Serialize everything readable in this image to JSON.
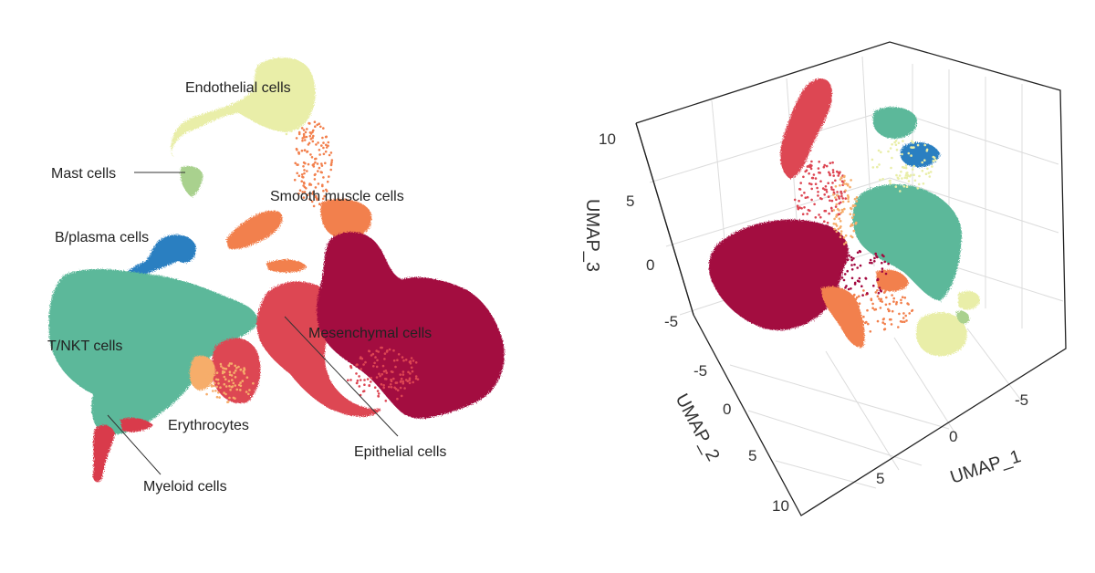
{
  "colors": {
    "endothelial": "#e9eea8",
    "mast": "#a9d18e",
    "smooth_muscle": "#f2804d",
    "b_plasma": "#2b7fc1",
    "t_nkt": "#5bb89a",
    "mesenchymal": "#a3083f",
    "epithelial": "#dd4653",
    "erythrocytes": "#f6ad6b",
    "myeloid": "#d93a4c"
  },
  "chart_data": [
    {
      "type": "scatter",
      "title": "",
      "xlabel": "",
      "ylabel": "",
      "grid": false,
      "legend": "none",
      "cluster_labels": [
        {
          "key": "endothelial",
          "label": "Endothelial cells"
        },
        {
          "key": "mast",
          "label": "Mast cells"
        },
        {
          "key": "smooth_muscle",
          "label": "Smooth muscle cells"
        },
        {
          "key": "b_plasma",
          "label": "B/plasma cells"
        },
        {
          "key": "t_nkt",
          "label": "T/NKT cells"
        },
        {
          "key": "mesenchymal",
          "label": "Mesenchymal cells"
        },
        {
          "key": "erythrocytes",
          "label": "Erythrocytes"
        },
        {
          "key": "epithelial",
          "label": "Epithelial cells"
        },
        {
          "key": "myeloid",
          "label": "Myeloid cells"
        }
      ]
    },
    {
      "type": "scatter",
      "title": "",
      "grid": true,
      "legend": "none",
      "axes": {
        "x": {
          "label": "UMAP_1",
          "ticks": [
            "-5",
            "0",
            "5"
          ]
        },
        "y": {
          "label": "UMAP_2",
          "ticks": [
            "-5",
            "0",
            "5",
            "10"
          ]
        },
        "z": {
          "label": "UMAP_3",
          "ticks": [
            "10",
            "5",
            "0",
            "-5"
          ]
        }
      }
    }
  ]
}
